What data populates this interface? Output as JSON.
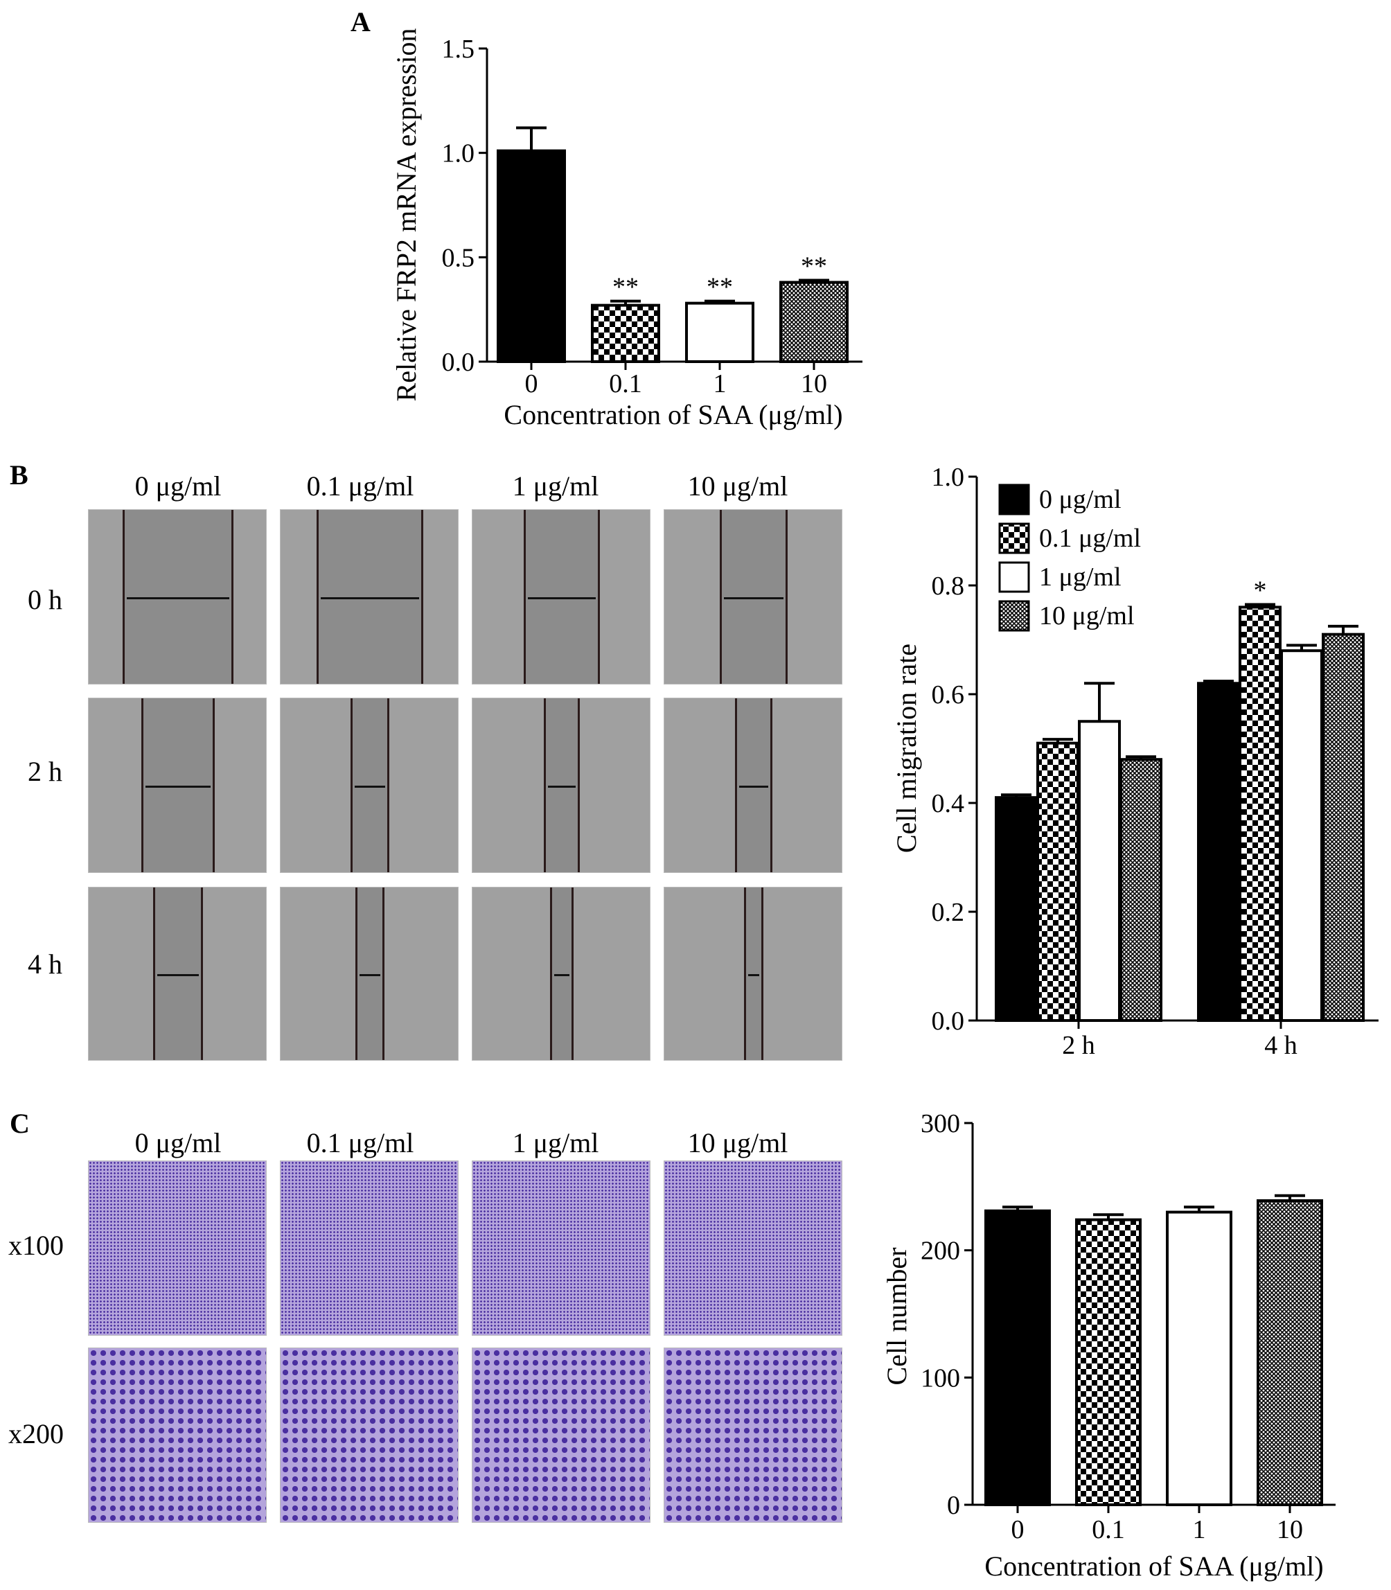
{
  "panel_labels": {
    "a": "A",
    "b": "B",
    "c": "C"
  },
  "conditions": [
    "0 μg/ml",
    "0.1 μg/ml",
    "1 μg/ml",
    "10 μg/ml"
  ],
  "wound_rows": [
    "0 h",
    "2 h",
    "4 h"
  ],
  "wound_gap_fraction": [
    [
      0.62,
      0.6,
      0.43,
      0.38
    ],
    [
      0.41,
      0.22,
      0.2,
      0.21
    ],
    [
      0.28,
      0.16,
      0.13,
      0.11
    ]
  ],
  "stain_rows": [
    "x100",
    "x200"
  ],
  "colors": {
    "bar": "#000000",
    "wound_bg": "#8c8c8c",
    "stain_bg": "#9a86c8",
    "stain_cells": "#4a2fa0"
  },
  "chart_data": [
    {
      "type": "bar",
      "categories": [
        "0",
        "0.1",
        "1",
        "10"
      ],
      "values": [
        1.01,
        0.27,
        0.28,
        0.38
      ],
      "errors": [
        0.11,
        0.02,
        0.01,
        0.01
      ],
      "annotations": [
        "",
        "**",
        "**",
        "**"
      ],
      "patterns": [
        "solid",
        "checker",
        "white",
        "crosshatch"
      ],
      "xlabel": "Concentration of SAA (μg/ml)",
      "ylabel": "Relative FRP2 mRNA expression",
      "ylim": [
        0,
        1.5
      ],
      "yticks": [
        "0.0",
        "0.5",
        "1.0",
        "1.5"
      ],
      "grid": false
    },
    {
      "type": "bar",
      "categories": [
        "2 h",
        "4 h"
      ],
      "series": [
        {
          "name": "0 μg/ml",
          "values": [
            0.41,
            0.62
          ],
          "errors": [
            0.005,
            0.004
          ]
        },
        {
          "name": "0.1 μg/ml",
          "values": [
            0.51,
            0.76
          ],
          "errors": [
            0.007,
            0.005
          ]
        },
        {
          "name": "1 μg/ml",
          "values": [
            0.55,
            0.68
          ],
          "errors": [
            0.07,
            0.01
          ]
        },
        {
          "name": "10 μg/ml",
          "values": [
            0.48,
            0.71
          ],
          "errors": [
            0.005,
            0.015
          ]
        }
      ],
      "patterns": [
        "solid",
        "checker",
        "white",
        "crosshatch"
      ],
      "annotations": [
        [
          "",
          ""
        ],
        [
          "",
          "*"
        ],
        [
          "",
          ""
        ],
        [
          "",
          ""
        ]
      ],
      "ylabel": "Cell migration rate",
      "xlabel": "",
      "ylim": [
        0,
        1.0
      ],
      "yticks": [
        "0.0",
        "0.2",
        "0.4",
        "0.6",
        "0.8",
        "1.0"
      ],
      "legend": "top-left",
      "grid": false
    },
    {
      "type": "bar",
      "categories": [
        "0",
        "0.1",
        "1",
        "10"
      ],
      "values": [
        231,
        224,
        230,
        239
      ],
      "errors": [
        3,
        4,
        4,
        4
      ],
      "patterns": [
        "solid",
        "checker",
        "white",
        "crosshatch"
      ],
      "xlabel": "Concentration of SAA (μg/ml)",
      "ylabel": "Cell number",
      "ylim": [
        0,
        300
      ],
      "yticks": [
        "0",
        "100",
        "200",
        "300"
      ],
      "grid": false
    }
  ]
}
